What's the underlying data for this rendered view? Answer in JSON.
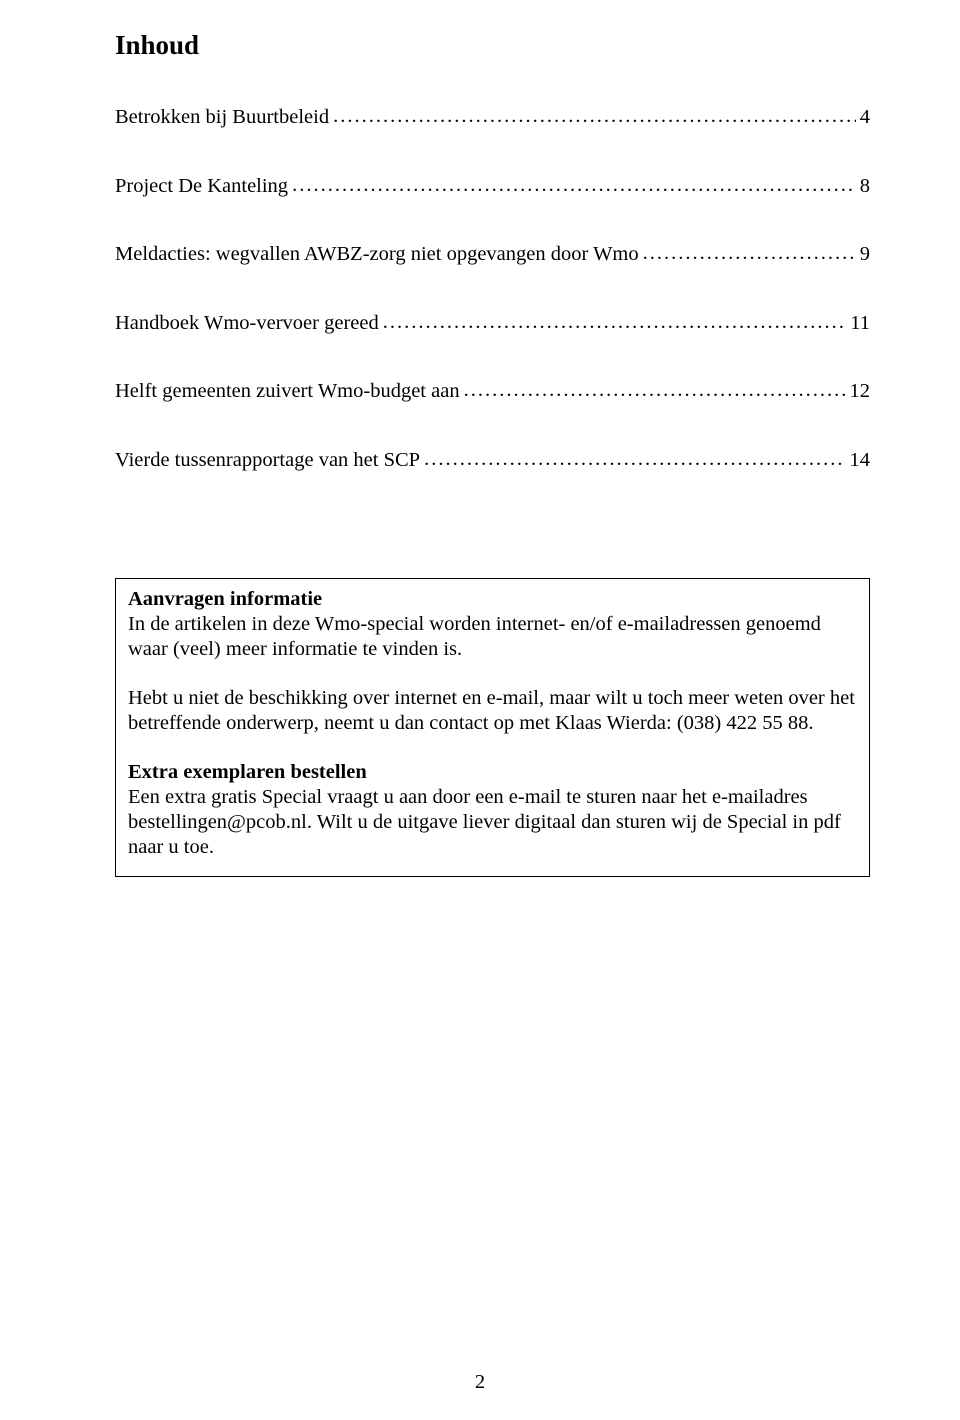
{
  "title": "Inhoud",
  "toc": [
    {
      "label": "Betrokken bij Buurtbeleid",
      "page": "4"
    },
    {
      "label": "Project De Kanteling",
      "page": "8"
    },
    {
      "label": "Meldacties: wegvallen AWBZ-zorg niet opgevangen door Wmo",
      "page": "9"
    },
    {
      "label": "Handboek Wmo-vervoer gereed",
      "page": "11"
    },
    {
      "label": "Helft gemeenten zuivert Wmo-budget aan",
      "page": "12"
    },
    {
      "label": "Vierde tussenrapportage van het SCP",
      "page": "14"
    }
  ],
  "box": {
    "heading1": "Aanvragen informatie",
    "para1": "In de artikelen in deze Wmo-special worden internet- en/of e-mailadressen genoemd waar (veel) meer informatie te vinden is.",
    "para2": "Hebt u niet de beschikking over internet en e-mail, maar wilt u toch meer weten over het betreffende onderwerp, neemt u dan contact op met Klaas Wierda: (038) 422 55 88.",
    "heading2": "Extra exemplaren bestellen",
    "para3": "Een extra gratis Special vraagt u aan door een e-mail te sturen naar het e-mailadres bestellingen@pcob.nl. Wilt u de uitgave liever digitaal dan sturen wij de Special in pdf naar u toe."
  },
  "pageNumber": "2"
}
